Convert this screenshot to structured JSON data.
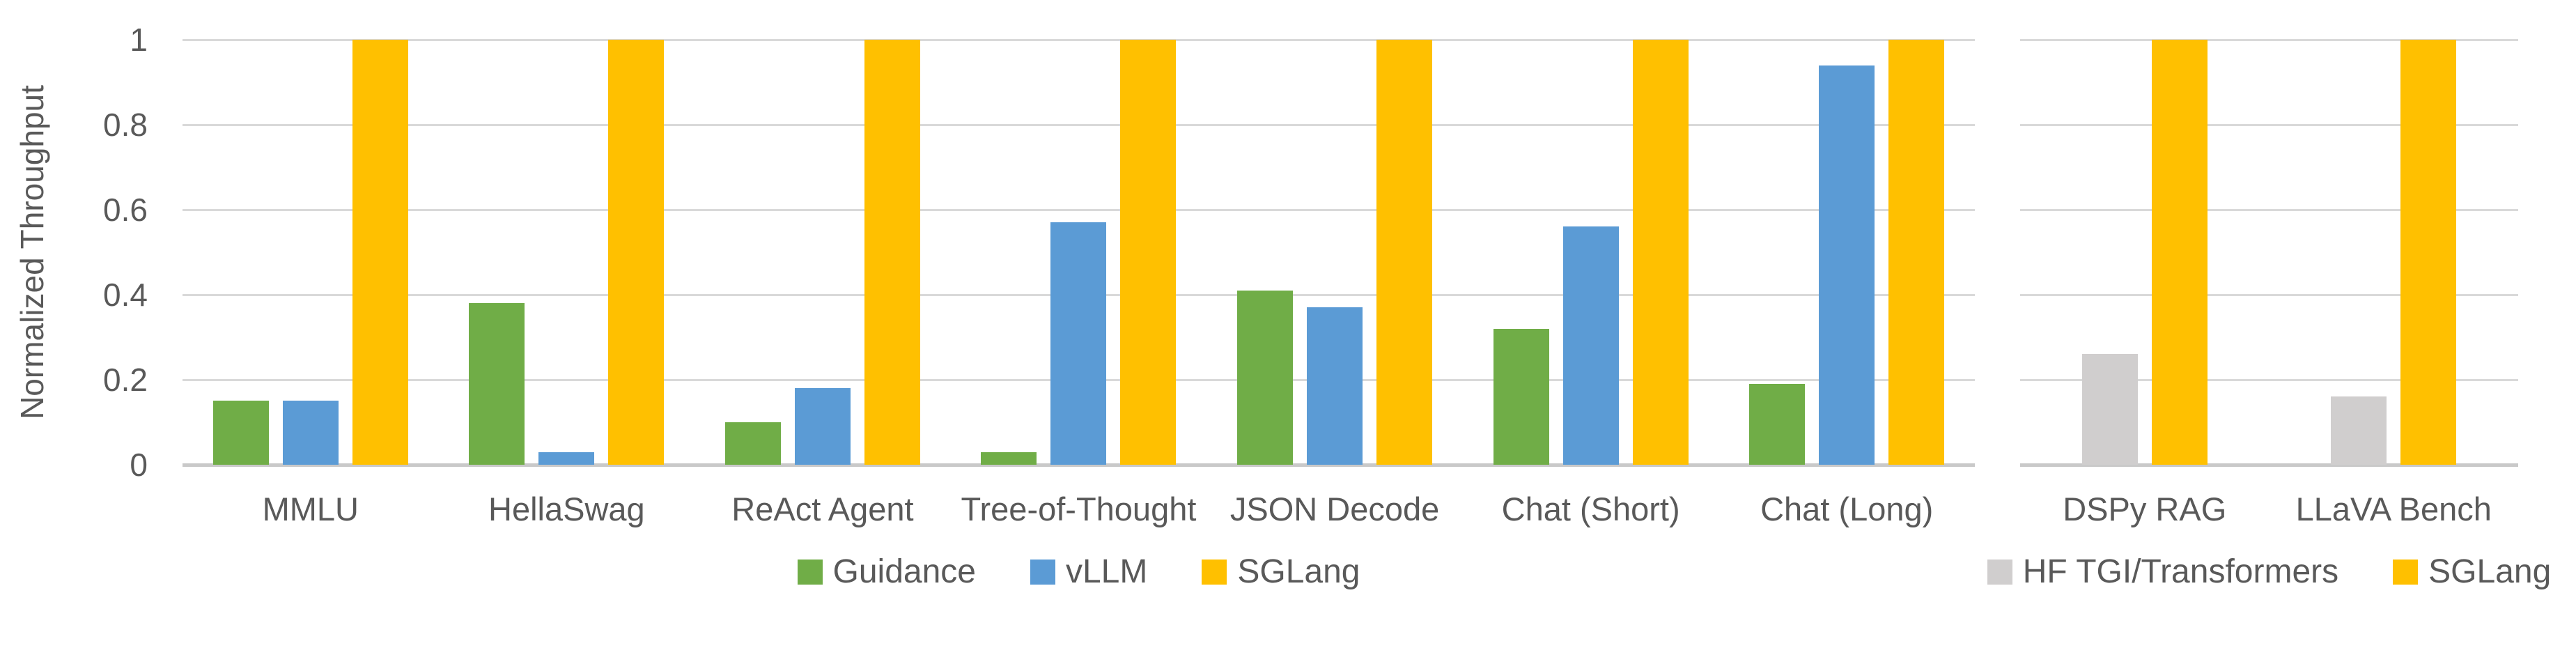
{
  "figure": {
    "background": "#FFFFFF",
    "text_color": "#595959",
    "gridline_color": "#D9D9D9",
    "axis_line_color": "#C9C9C9"
  },
  "chart_data": [
    {
      "type": "bar",
      "title": "",
      "ylabel": "Normalized Throughput",
      "xlabel": "",
      "ylim": [
        0,
        1
      ],
      "yticks": [
        "0",
        "0.2",
        "0.4",
        "0.6",
        "0.8",
        "1"
      ],
      "grid": true,
      "legend_position": "bottom",
      "categories": [
        "MMLU",
        "HellaSwag",
        "ReAct Agent",
        "Tree-of-Thought",
        "JSON Decode",
        "Chat (Short)",
        "Chat (Long)"
      ],
      "series": [
        {
          "name": "Guidance",
          "color": "#70AD47",
          "values": [
            0.15,
            0.38,
            0.1,
            0.03,
            0.41,
            0.32,
            0.19
          ]
        },
        {
          "name": "vLLM",
          "color": "#5B9BD5",
          "values": [
            0.15,
            0.03,
            0.18,
            0.57,
            0.37,
            0.56,
            0.94
          ]
        },
        {
          "name": "SGLang",
          "color": "#FFC000",
          "values": [
            1,
            1,
            1,
            1,
            1,
            1,
            1
          ]
        }
      ]
    },
    {
      "type": "bar",
      "title": "",
      "ylabel": "",
      "xlabel": "",
      "ylim": [
        0,
        1
      ],
      "yticks": [
        "0",
        "0.2",
        "0.4",
        "0.6",
        "0.8",
        "1"
      ],
      "grid": true,
      "legend_position": "bottom",
      "categories": [
        "DSPy RAG",
        "LLaVA Bench"
      ],
      "series": [
        {
          "name": "HF TGI/Transformers",
          "color": "#D0CECE",
          "values": [
            0.26,
            0.16
          ]
        },
        {
          "name": "SGLang",
          "color": "#FFC000",
          "values": [
            1,
            1
          ]
        }
      ]
    }
  ]
}
